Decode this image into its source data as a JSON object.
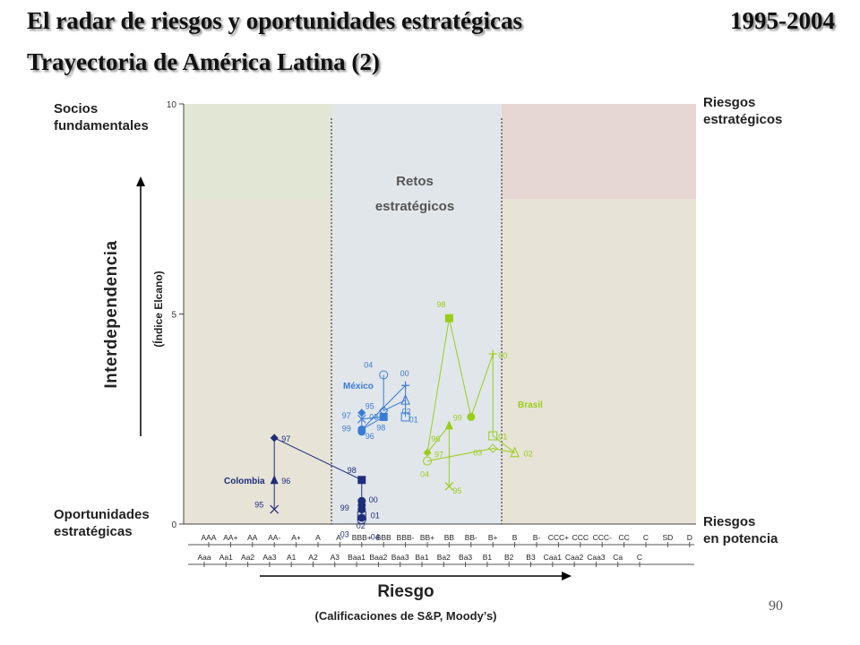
{
  "header": {
    "title_line1": "El radar de riesgos y oportunidades estratégicas",
    "years": "1995-2004",
    "title_line2": "Trayectoria de América Latina (2)"
  },
  "quadrants": {
    "top_left": [
      "Socios",
      "fundamentales"
    ],
    "top_right": [
      "Riesgos",
      "estratégicos"
    ],
    "bottom_left": [
      "Oportunidades",
      "estratégicas"
    ],
    "bottom_right": [
      "Riesgos",
      "en potencia"
    ],
    "center": [
      "Retos",
      "estratégicos"
    ]
  },
  "axes": {
    "y_title": "Interdependencia",
    "y_subtitle": "(Índice Elcano)",
    "x_title": "Riesgo",
    "x_subtitle": "(Calificaciones de S&P, Moody’s)"
  },
  "page_number": "90",
  "colors": {
    "colombia": "#1f2d7a",
    "mexico": "#3a7bd5",
    "brasil": "#9acd1a",
    "zone_green": "#e2e6d4",
    "zone_blue": "#e1e6ea",
    "zone_red": "#e6d6d4",
    "zone_tan": "#e7e3d6"
  },
  "chart_data": {
    "type": "scatter",
    "y_ticks": [
      "0",
      "5",
      "10"
    ],
    "ylim": [
      0,
      10
    ],
    "x_categories_sp": [
      "AAA",
      "AA+",
      "AA",
      "AA-",
      "A+",
      "A",
      "A-",
      "BBB+",
      "BBB",
      "BBB-",
      "BB+",
      "BB",
      "BB-",
      "B+",
      "B",
      "B-",
      "CCC+",
      "CCC",
      "CCC-",
      "CC",
      "C",
      "SD",
      "D"
    ],
    "x_categories_moodys": [
      "Aaa",
      "Aa1",
      "Aa2",
      "Aa3",
      "A1",
      "A2",
      "A3",
      "Baa1",
      "Baa2",
      "Baa3",
      "Ba1",
      "Ba2",
      "Ba3",
      "B1",
      "B2",
      "B3",
      "Caa1",
      "Caa2",
      "Caa3",
      "Ca",
      "C"
    ],
    "series": [
      {
        "name": "Colombia",
        "color_key": "colombia",
        "points": [
          {
            "year": "95",
            "x": "AA-",
            "y": 0.35,
            "marker": "x"
          },
          {
            "year": "96",
            "x": "AA-",
            "y": 1.05,
            "marker": "triangle"
          },
          {
            "year": "97",
            "x": "AA-",
            "y": 2.05,
            "marker": "diamond"
          },
          {
            "year": "98",
            "x": "BBB+",
            "y": 1.05,
            "marker": "square"
          },
          {
            "year": "99",
            "x": "BBB+",
            "y": 0.45,
            "marker": "circle"
          },
          {
            "year": "00",
            "x": "BBB+",
            "y": 0.55,
            "marker": "circle"
          },
          {
            "year": "01",
            "x": "BBB+",
            "y": 0.35,
            "marker": "circle"
          },
          {
            "year": "02",
            "x": "BBB+",
            "y": 0.15,
            "marker": "circle"
          },
          {
            "year": "03",
            "x": "BBB+",
            "y": 0.2,
            "marker": "square-open"
          },
          {
            "year": "04",
            "x": "BBB+",
            "y": 0.1,
            "marker": "circle-open"
          }
        ]
      },
      {
        "name": "México",
        "color_key": "mexico",
        "points": [
          {
            "year": "95",
            "x": "BBB+",
            "y": 2.65,
            "marker": "diamond"
          },
          {
            "year": "96",
            "x": "BBB+",
            "y": 2.2,
            "marker": "circle"
          },
          {
            "year": "97",
            "x": "BBB+",
            "y": 2.5,
            "marker": "x"
          },
          {
            "year": "98",
            "x": "BBB",
            "y": 2.55,
            "marker": "square"
          },
          {
            "year": "99",
            "x": "BBB+",
            "y": 2.25,
            "marker": "circle"
          },
          {
            "year": "00",
            "x": "BBB-",
            "y": 3.3,
            "marker": "plus"
          },
          {
            "year": "01",
            "x": "BBB-",
            "y": 2.55,
            "marker": "square-open"
          },
          {
            "year": "02",
            "x": "BBB-",
            "y": 2.95,
            "marker": "triangle-open"
          },
          {
            "year": "03",
            "x": "BBB",
            "y": 2.7,
            "marker": "diamond-open"
          },
          {
            "year": "04",
            "x": "BBB",
            "y": 3.55,
            "marker": "circle-open"
          }
        ]
      },
      {
        "name": "Brasil",
        "color_key": "brasil",
        "points": [
          {
            "year": "95",
            "x": "BB",
            "y": 0.9,
            "marker": "x"
          },
          {
            "year": "96",
            "x": "BB",
            "y": 2.35,
            "marker": "triangle"
          },
          {
            "year": "97",
            "x": "BB+",
            "y": 1.7,
            "marker": "diamond"
          },
          {
            "year": "98",
            "x": "BB",
            "y": 4.9,
            "marker": "square"
          },
          {
            "year": "99",
            "x": "BB-",
            "y": 2.55,
            "marker": "circle"
          },
          {
            "year": "00",
            "x": "B+",
            "y": 4.05,
            "marker": "plus"
          },
          {
            "year": "01",
            "x": "B+",
            "y": 2.1,
            "marker": "square-open"
          },
          {
            "year": "02",
            "x": "B",
            "y": 1.7,
            "marker": "triangle-open"
          },
          {
            "year": "03",
            "x": "B+",
            "y": 1.8,
            "marker": "diamond-open"
          },
          {
            "year": "04",
            "x": "BB+",
            "y": 1.5,
            "marker": "circle-open"
          }
        ]
      }
    ]
  }
}
